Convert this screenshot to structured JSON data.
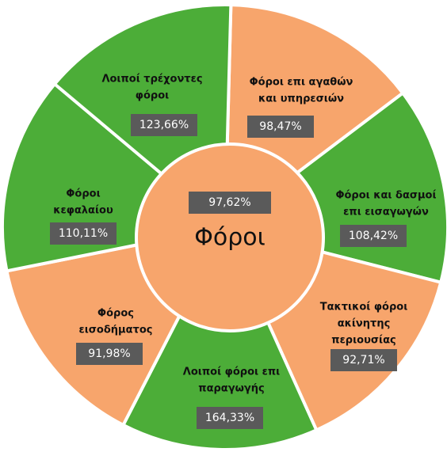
{
  "center": {
    "label": "Φόροι",
    "value": "97,62%",
    "color": "#f7a56c"
  },
  "segments": [
    {
      "label": [
        "Φόροι επι αγαθών",
        "και υπηρεσιών"
      ],
      "value": "98,47%",
      "color": "#f7a56c"
    },
    {
      "label": [
        "Φόροι και δασμοί",
        "επι εισαγωγών"
      ],
      "value": "108,42%",
      "color": "#4cad38"
    },
    {
      "label": [
        "Τακτικοί φόροι",
        "ακίνητης",
        "περιουσίας"
      ],
      "value": "92,71%",
      "color": "#f7a56c"
    },
    {
      "label": [
        "Λοιποί φόροι επι",
        "παραγωγής"
      ],
      "value": "164,33%",
      "color": "#4cad38"
    },
    {
      "label": [
        "Φόρος",
        "εισοδήματος"
      ],
      "value": "91,98%",
      "color": "#f7a56c"
    },
    {
      "label": [
        "Φόροι",
        "κεφαλαίου"
      ],
      "value": "110,11%",
      "color": "#4cad38"
    },
    {
      "label": [
        "Λοιποί τρέχοντες",
        "φόροι"
      ],
      "value": "123,66%",
      "color": "#4cad38"
    }
  ]
}
